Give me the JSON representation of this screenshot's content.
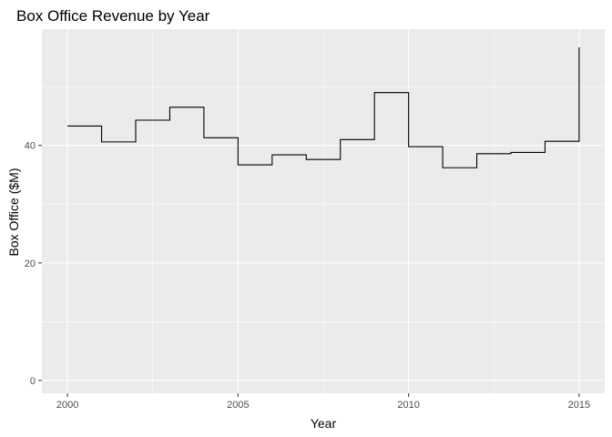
{
  "chart_data": {
    "type": "line",
    "line_style": "step",
    "title": "Box Office Revenue by Year",
    "xlabel": "Year",
    "ylabel": "Box Office ($M)",
    "x": [
      2000,
      2001,
      2002,
      2003,
      2004,
      2005,
      2006,
      2007,
      2008,
      2009,
      2010,
      2011,
      2012,
      2013,
      2014,
      2015
    ],
    "y": [
      43.3,
      40.6,
      44.3,
      46.5,
      41.3,
      36.7,
      38.4,
      37.6,
      41.0,
      49.0,
      39.8,
      36.2,
      38.6,
      38.8,
      40.7,
      56.7
    ],
    "xlim": [
      1999.25,
      2015.75
    ],
    "ylim": [
      -2.2,
      59.8
    ],
    "xticks": [
      2000,
      2005,
      2010,
      2015
    ],
    "yticks": [
      0,
      20,
      40
    ],
    "grid": true,
    "legend": "none",
    "colors": {
      "panel": "#ebebeb",
      "grid": "#ffffff",
      "line": "#000000",
      "tick_text": "#4d4d4d",
      "tick_mark": "#333333"
    }
  }
}
